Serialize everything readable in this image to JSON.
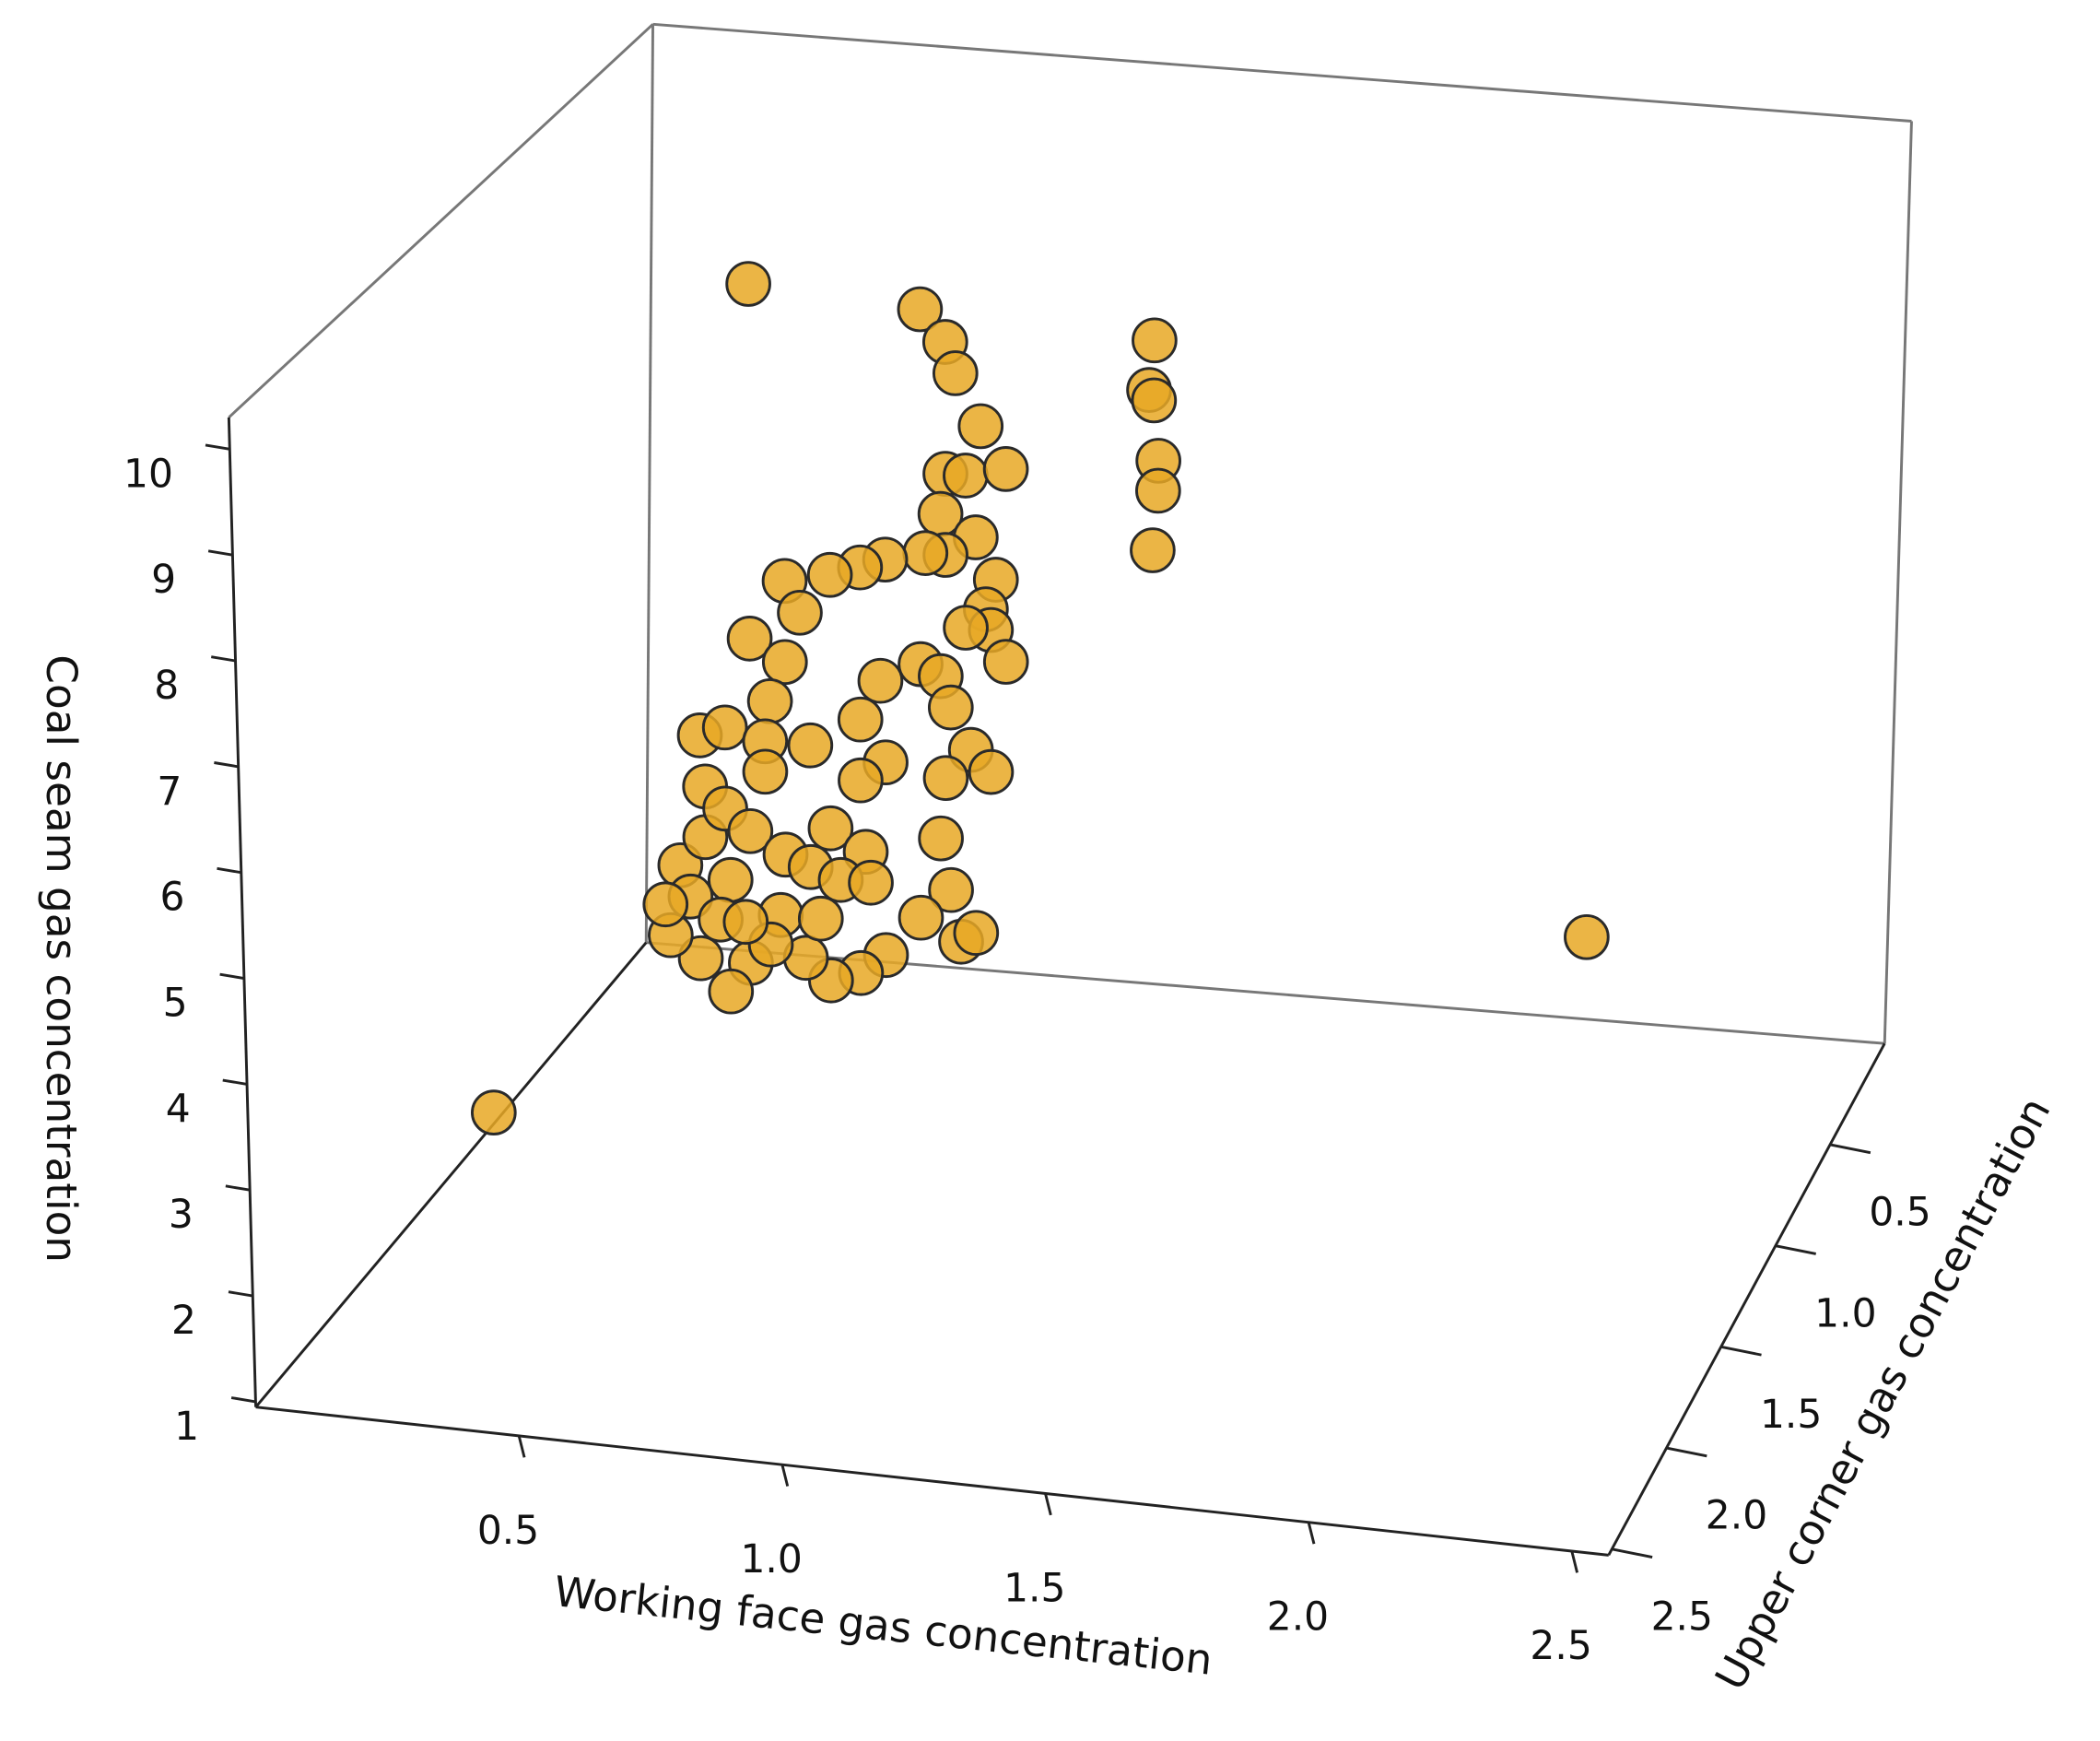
{
  "chart_data": {
    "type": "scatter3d",
    "x_label": "Working face gas concentration",
    "y_label": "Upper corner gas concentration",
    "z_label": "Coal seam gas concentration",
    "xlim": [
      0,
      2.57
    ],
    "ylim": [
      0,
      2.53
    ],
    "zlim": [
      0.95,
      10.3
    ],
    "xticks": [
      0.5,
      {
        "value": 1,
        "label": "1.0"
      },
      1.5,
      {
        "value": 2,
        "label": "2.0"
      },
      2.5
    ],
    "yticks": [
      0.5,
      {
        "value": 1,
        "label": "1.0"
      },
      1.5,
      {
        "value": 2,
        "label": "2.0"
      },
      2.5
    ],
    "zticks": [
      1,
      2,
      3,
      4,
      5,
      6,
      7,
      8,
      9,
      10
    ],
    "series": [
      {
        "color": "#e8a824",
        "x": [
          0.52,
          0.86,
          0.91,
          0.93,
          0.98,
          0.91,
          0.95,
          1.03,
          0.9,
          0.97,
          1.01,
          0.99,
          1.0,
          1.03,
          0.95,
          0.91,
          0.87,
          0.79,
          0.74,
          0.68,
          0.59,
          0.62,
          0.52,
          0.59,
          0.56,
          0.42,
          0.47,
          0.55,
          0.64,
          0.55,
          0.43,
          0.74,
          0.78,
          0.86,
          0.9,
          0.92,
          0.96,
          1.0,
          0.91,
          0.79,
          0.74,
          0.68,
          0.75,
          0.9,
          0.92,
          0.94,
          0.97,
          0.86,
          0.79,
          0.74,
          0.68,
          0.63,
          0.58,
          0.52,
          0.48,
          0.42,
          0.36,
          0.38,
          0.43,
          0.47,
          0.52,
          0.59,
          0.64,
          0.7,
          0.76,
          0.48,
          0.4,
          0.56,
          0.46,
          0.35,
          0.51,
          0.66,
          1.18,
          1.17,
          1.18,
          1.19,
          1.19,
          1.18,
          0.31,
          2.02
        ],
        "y": [
          1,
          1,
          1,
          1,
          1,
          1,
          1,
          1,
          1,
          1,
          1,
          1,
          1,
          1,
          1,
          1,
          1,
          1,
          1,
          1,
          1,
          1,
          1,
          1,
          1,
          1,
          1,
          1,
          1,
          1,
          1,
          1,
          1,
          1,
          1,
          1,
          1,
          1,
          1,
          1,
          1,
          1,
          1,
          1,
          1,
          1,
          1,
          1,
          1,
          1,
          1,
          1,
          1,
          1,
          1,
          1,
          1,
          1,
          1,
          1,
          1,
          1,
          1,
          1,
          1,
          1,
          1,
          1,
          1,
          1,
          1,
          1,
          0.5,
          0.5,
          0.5,
          0.5,
          0.5,
          0.5,
          2.0,
          0.3
        ],
        "z": [
          9.5,
          9.4,
          9.1,
          8.8,
          8.3,
          7.8,
          7.8,
          7.9,
          7.4,
          7.2,
          6.8,
          6.5,
          6.3,
          6.0,
          6.3,
          7.0,
          7.0,
          6.9,
          6.8,
          6.7,
          6.6,
          6.3,
          6.0,
          5.8,
          5.4,
          5.0,
          5.1,
          5.0,
          5.0,
          4.7,
          4.5,
          5.3,
          5.7,
          5.9,
          5.8,
          5.5,
          5.1,
          4.9,
          4.8,
          4.9,
          4.7,
          4.2,
          4.0,
          4.2,
          3.7,
          3.2,
          3.3,
          3.4,
          3.0,
          2.8,
          2.7,
          2.9,
          3.3,
          2.8,
          2.5,
          2.8,
          3.0,
          3.7,
          4.0,
          4.3,
          4.1,
          3.9,
          3.8,
          3.7,
          3.7,
          3.6,
          3.4,
          3.0,
          3.2,
          3.3,
          3.2,
          3.3,
          8.4,
          7.9,
          7.8,
          7.2,
          6.9,
          6.3,
          3.0,
          2.4
        ]
      }
    ]
  }
}
